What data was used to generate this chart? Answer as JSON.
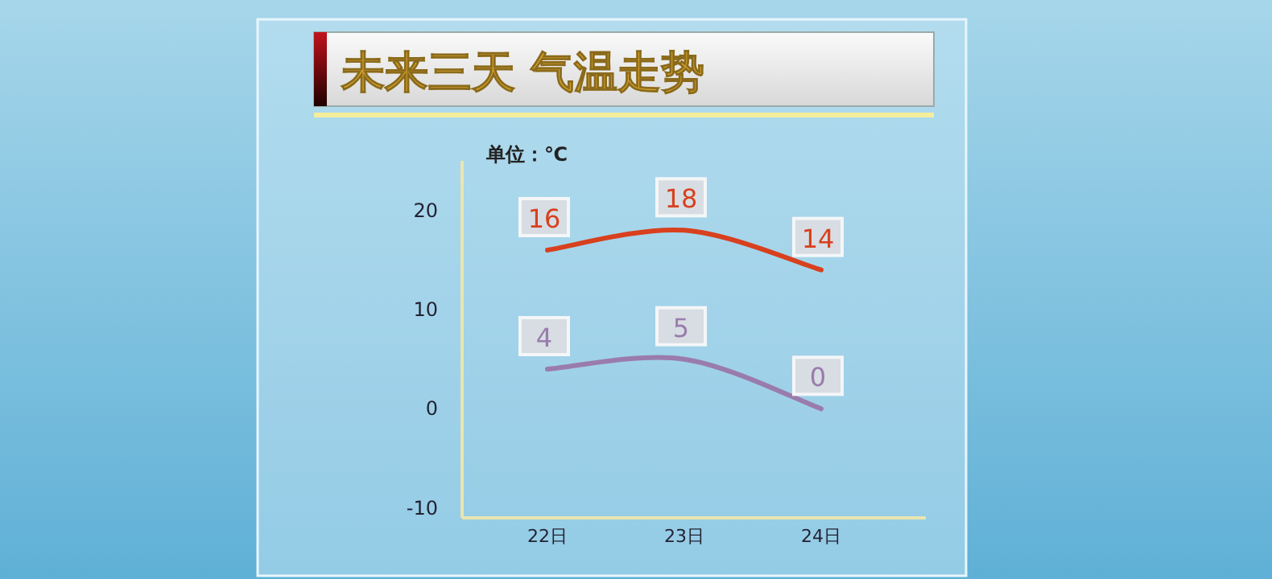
{
  "chart_data": {
    "type": "line",
    "title": "未来三天  气温走势",
    "annotations": [
      "单位：℃"
    ],
    "categories": [
      "22日",
      "23日",
      "24日"
    ],
    "series": [
      {
        "color": "#d8401e",
        "values": [
          16,
          18,
          14
        ]
      },
      {
        "color": "#9a7cac",
        "values": [
          4,
          5,
          0
        ]
      }
    ],
    "ylim": [
      -11,
      25
    ],
    "yticks": [
      -10,
      0,
      10,
      20
    ],
    "grid": false,
    "data_labels": true,
    "marker": "none",
    "line_style": "solid"
  }
}
